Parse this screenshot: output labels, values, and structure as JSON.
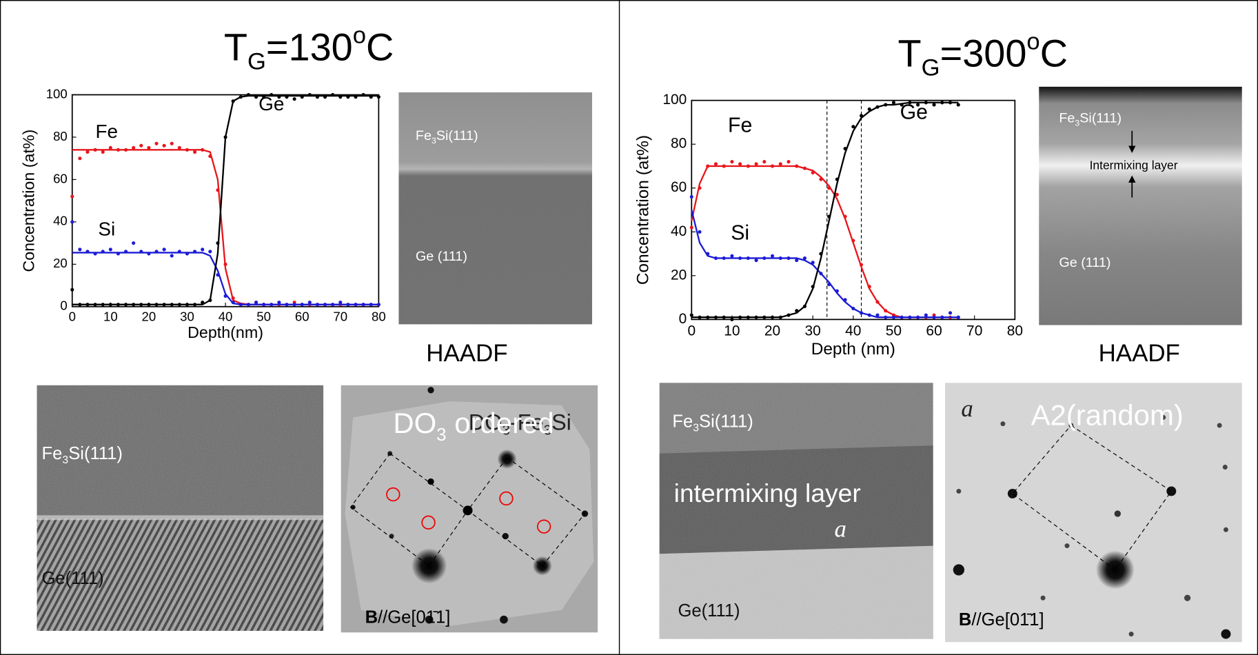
{
  "panels": [
    {
      "title": [
        "T",
        "G",
        "=130",
        "o",
        "C"
      ],
      "haadf": {
        "top": [
          "Fe",
          "3",
          "Si(111)"
        ],
        "bottom": "Ge (111)",
        "caption": "HAADF"
      },
      "hrtem": {
        "top": [
          "Fe",
          "3",
          "Si(111)"
        ],
        "bottom": "Ge(111)"
      },
      "diffraction": {
        "phase": [
          "DO",
          "3",
          " ordered"
        ],
        "phase_alt": [
          "DO",
          "3",
          "-Fe",
          "3",
          "Si"
        ],
        "beam": [
          "B",
          "//Ge[01̄1]"
        ]
      }
    },
    {
      "title": [
        "T",
        "G",
        "=300",
        "o",
        "C"
      ],
      "haadf": {
        "top": [
          "Fe",
          "3",
          "Si(111)"
        ],
        "middle": "Intermixing layer",
        "bottom": "Ge (111)",
        "caption": "HAADF"
      },
      "hrtem": {
        "top": [
          "Fe",
          "3",
          "Si(111)"
        ],
        "middle": "intermixing layer",
        "marker": "a",
        "bottom": "Ge(111)"
      },
      "diffraction": {
        "marker": "a",
        "phase": "A2(random)",
        "beam": [
          "B",
          "//Ge[01̄1]"
        ]
      }
    }
  ],
  "chart_data": [
    {
      "type": "line",
      "x_label": "Depth(nm)",
      "y_label": "Concentration (at%)",
      "xlim": [
        0,
        80
      ],
      "ylim": [
        0,
        100
      ],
      "xticks": [
        0,
        10,
        20,
        30,
        40,
        50,
        60,
        70,
        80
      ],
      "yticks": [
        0,
        20,
        40,
        60,
        80,
        100
      ],
      "x": [
        0,
        2,
        4,
        6,
        8,
        10,
        12,
        14,
        16,
        18,
        20,
        22,
        24,
        26,
        28,
        30,
        32,
        34,
        36,
        38,
        40,
        42,
        44,
        46,
        48,
        50,
        52,
        54,
        56,
        58,
        60,
        62,
        64,
        66,
        68,
        70,
        72,
        74,
        76,
        78,
        80
      ],
      "series": [
        {
          "name": "Fe",
          "color": "#e8161b",
          "values": [
            52,
            70,
            73,
            74,
            73,
            75,
            74,
            74,
            75,
            76,
            75,
            77,
            76,
            77,
            75,
            74,
            73,
            74,
            71,
            55,
            20,
            4,
            1,
            1,
            2,
            1,
            1,
            1,
            1,
            2,
            1,
            1,
            1,
            1,
            1,
            1,
            1,
            1,
            1,
            1,
            1
          ],
          "fit": [
            74,
            74,
            74,
            74,
            74,
            74,
            74,
            74,
            74,
            74,
            74,
            74,
            74,
            74,
            74,
            74,
            74,
            74,
            73,
            60,
            18,
            3,
            1.5,
            1,
            1,
            1,
            1,
            1,
            1,
            1,
            1,
            1,
            1,
            1,
            1,
            1,
            1,
            1,
            1,
            1,
            1
          ]
        },
        {
          "name": "Si",
          "color": "#1b1bd6",
          "values": [
            40,
            27,
            26,
            25,
            26,
            27,
            25,
            26,
            30,
            26,
            25,
            26,
            27,
            24,
            26,
            25,
            26,
            27,
            26,
            15,
            5,
            2,
            1,
            1,
            2,
            1,
            1,
            2,
            1,
            1,
            1,
            2,
            1,
            1,
            1,
            2,
            1,
            1,
            1,
            1,
            1
          ],
          "fit": [
            25.5,
            25.5,
            25.5,
            25.5,
            25.5,
            25.5,
            25.5,
            25.5,
            25.5,
            25.5,
            25.5,
            25.5,
            25.5,
            25.5,
            25.5,
            25.5,
            25.5,
            25.5,
            24,
            17,
            6,
            1.5,
            1,
            1,
            1,
            1,
            1,
            1,
            1,
            1,
            1,
            1,
            1,
            1,
            1,
            1,
            1,
            1,
            1,
            1,
            1
          ]
        },
        {
          "name": "Ge",
          "color": "#000000",
          "values": [
            8,
            1,
            1,
            1,
            1,
            1,
            1,
            1,
            1,
            1,
            1,
            1,
            1,
            1,
            1,
            1,
            1,
            2,
            3,
            30,
            80,
            97,
            99,
            100,
            99,
            99,
            100,
            99,
            99,
            98,
            99,
            100,
            99,
            99,
            100,
            99,
            99,
            99,
            100,
            99,
            99
          ],
          "fit": [
            1,
            1,
            1,
            1,
            1,
            1,
            1,
            1,
            1,
            1,
            1,
            1,
            1,
            1,
            1,
            1,
            1,
            1,
            3,
            25,
            80,
            97,
            99,
            99.5,
            99.5,
            99.5,
            99.5,
            99.5,
            99.5,
            99.5,
            99.5,
            99.5,
            99.5,
            99.5,
            99.5,
            99.5,
            99.5,
            99.5,
            99.5,
            99.5,
            99.5
          ]
        }
      ]
    },
    {
      "type": "line",
      "x_label": "Depth (nm)",
      "y_label": "Concentration (at%)",
      "xlim": [
        0,
        80
      ],
      "ylim": [
        0,
        100
      ],
      "xticks": [
        0,
        10,
        20,
        30,
        40,
        50,
        60,
        70,
        80
      ],
      "yticks": [
        0,
        20,
        40,
        60,
        80,
        100
      ],
      "vlines": [
        33.5,
        42
      ],
      "x": [
        0,
        2,
        4,
        6,
        8,
        10,
        12,
        14,
        16,
        18,
        20,
        22,
        24,
        26,
        28,
        30,
        32,
        34,
        36,
        38,
        40,
        42,
        44,
        46,
        48,
        50,
        52,
        54,
        56,
        58,
        60,
        62,
        64,
        66
      ],
      "series": [
        {
          "name": "Fe",
          "color": "#e8161b",
          "values": [
            42,
            60,
            70,
            71,
            70,
            72,
            71,
            70,
            71,
            72,
            70,
            71,
            72,
            70,
            69,
            67,
            64,
            60,
            57,
            47,
            36,
            25,
            15,
            8,
            4,
            2,
            1,
            1,
            1,
            1,
            2,
            1,
            1,
            1
          ],
          "fit": [
            45,
            62,
            70,
            70,
            70,
            70,
            70,
            70,
            70,
            70,
            70,
            70,
            70,
            70,
            69,
            68,
            65,
            61,
            55,
            46,
            35,
            24,
            14,
            8,
            4,
            2,
            1,
            1,
            1,
            1,
            1,
            1,
            1,
            1
          ]
        },
        {
          "name": "Si",
          "color": "#1b1bd6",
          "values": [
            56,
            40,
            30,
            28,
            28,
            29,
            28,
            28,
            27,
            28,
            29,
            28,
            28,
            27,
            28,
            26,
            21,
            16,
            13,
            9,
            5,
            3,
            2,
            2,
            1,
            1,
            1,
            1,
            1,
            2,
            1,
            1,
            3,
            1
          ],
          "fit": [
            50,
            35,
            29,
            28,
            28,
            28,
            28,
            28,
            28,
            28,
            28,
            28,
            28,
            28,
            27,
            25,
            21,
            17,
            12,
            8,
            5,
            3,
            2,
            1,
            1,
            1,
            1,
            1,
            1,
            1,
            1,
            1,
            1,
            1
          ]
        },
        {
          "name": "Ge",
          "color": "#000000",
          "values": [
            2,
            1,
            1,
            1,
            1,
            0,
            1,
            1,
            1,
            1,
            1,
            1,
            2,
            4,
            6,
            15,
            30,
            47,
            64,
            78,
            88,
            93,
            96,
            97,
            98,
            99,
            98,
            99,
            98,
            99,
            98,
            99,
            99,
            98
          ],
          "fit": [
            1,
            1,
            1,
            1,
            1,
            1,
            1,
            1,
            1,
            1,
            1,
            1,
            2,
            3,
            6,
            14,
            28,
            45,
            62,
            76,
            86,
            92,
            95,
            97,
            98,
            98,
            98.5,
            99,
            99,
            99,
            99,
            99,
            99,
            99
          ]
        }
      ]
    }
  ]
}
